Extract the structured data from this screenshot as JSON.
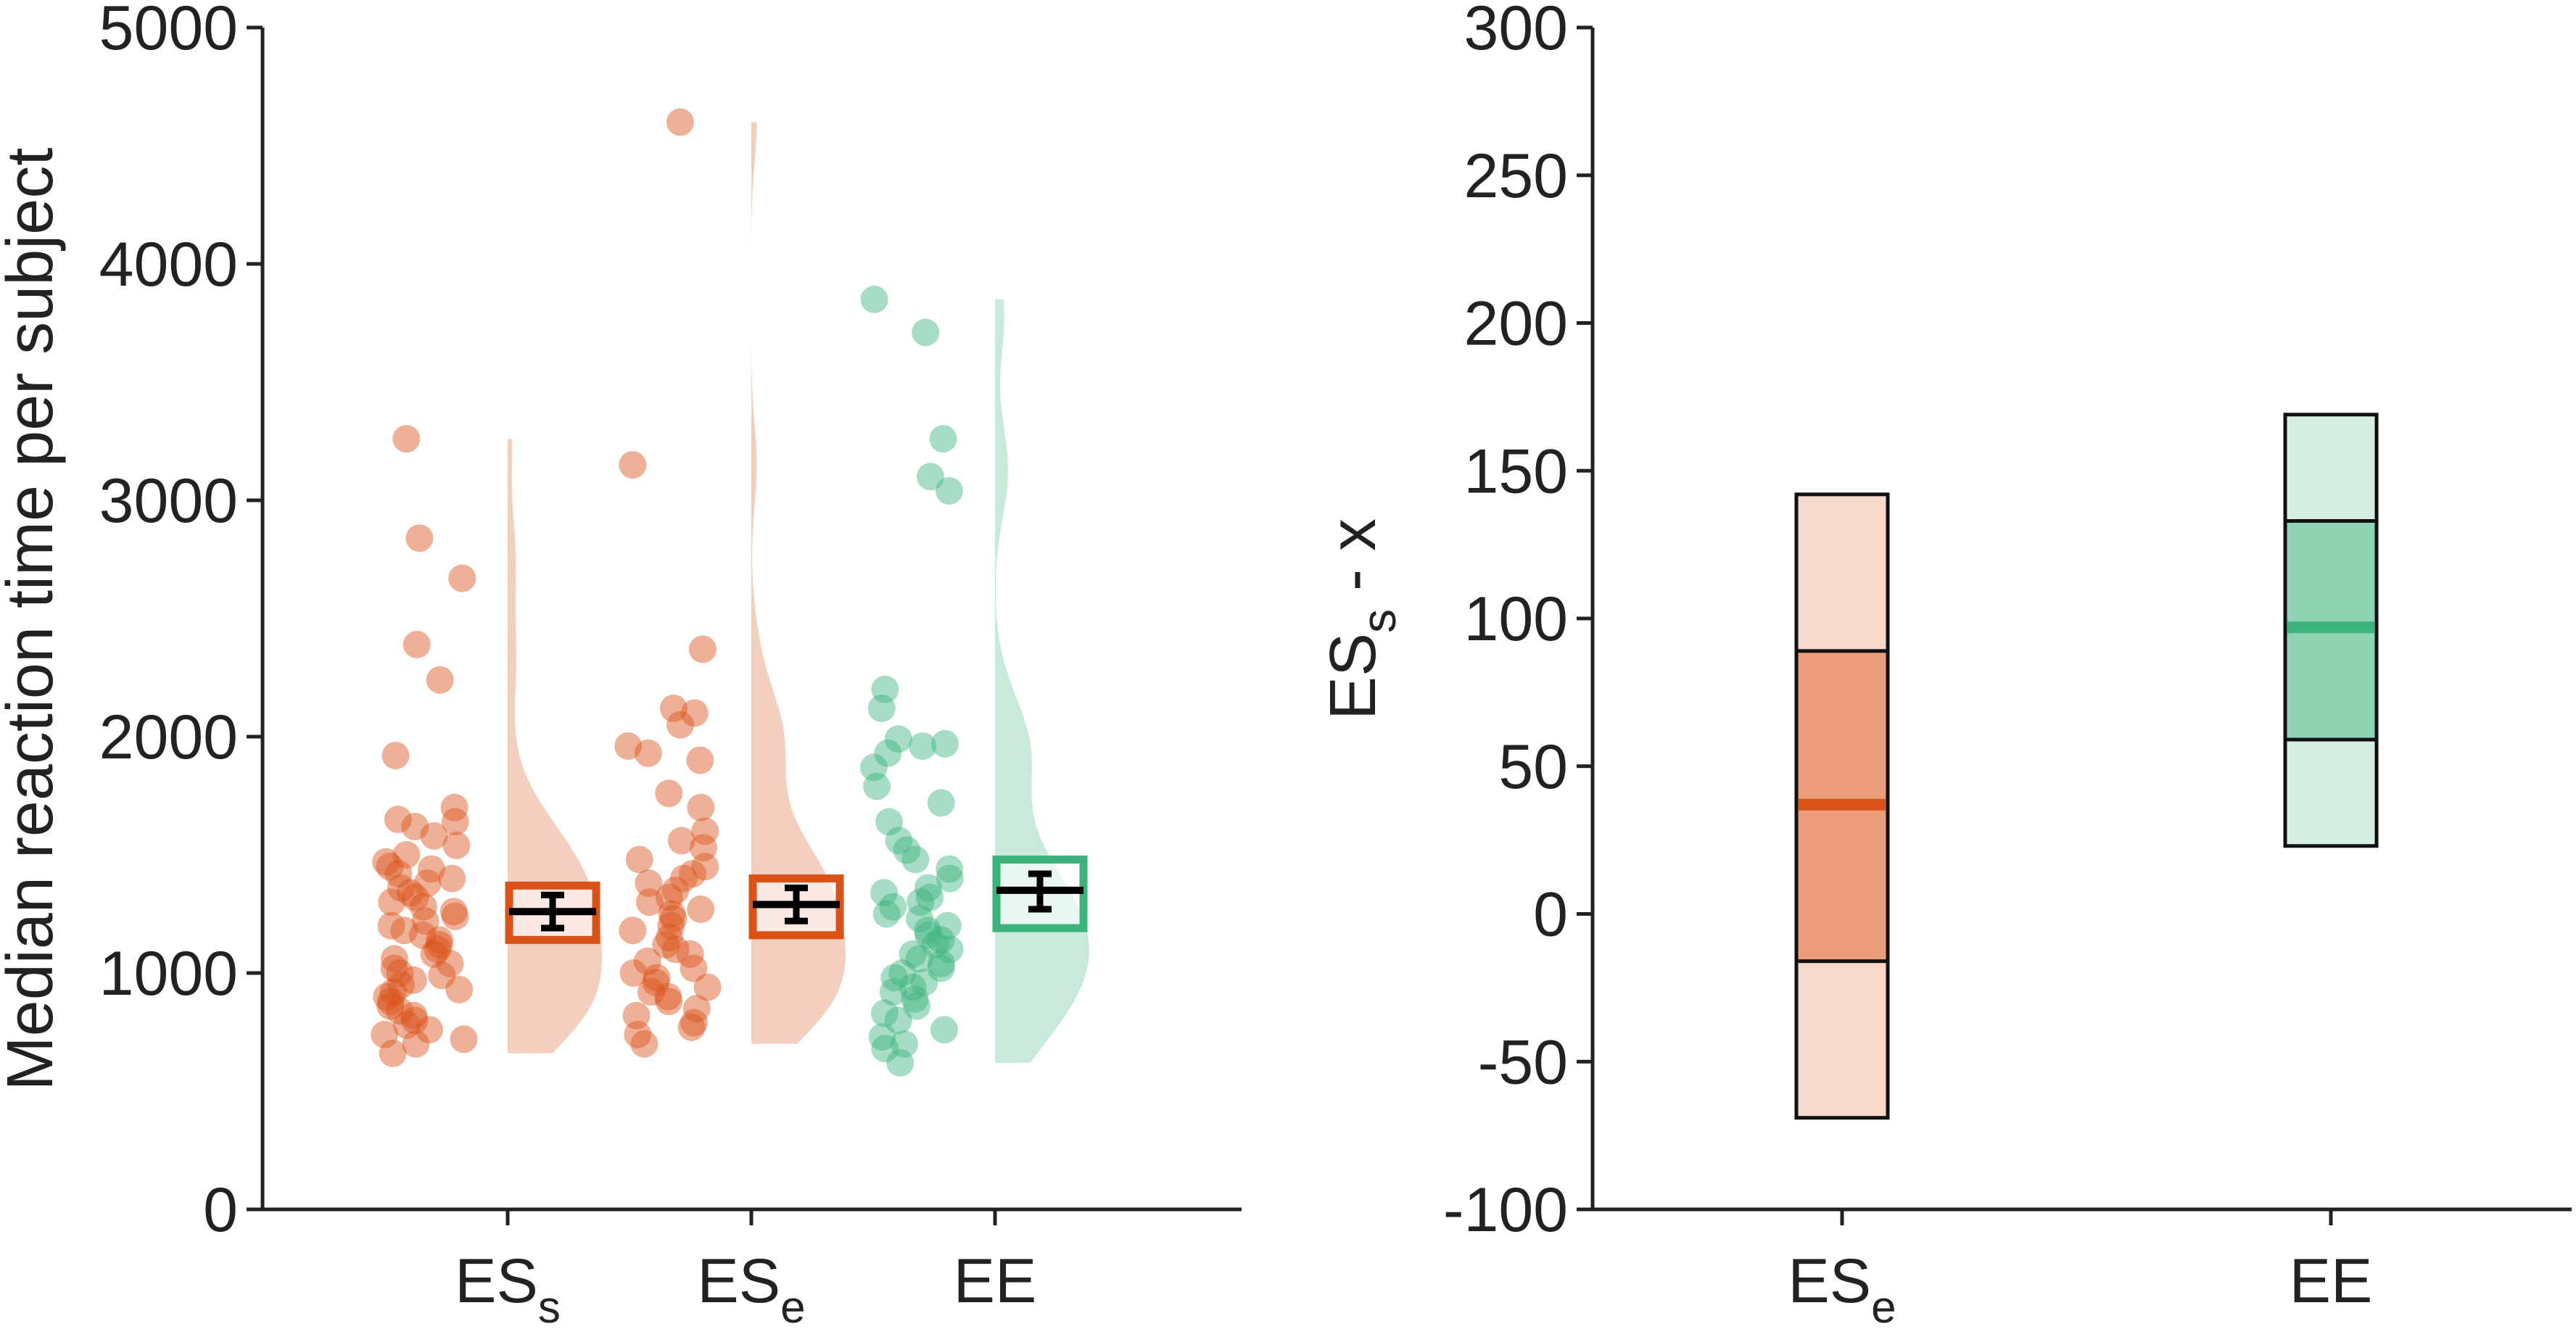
{
  "colors": {
    "ESs": "#D95319",
    "ESe": "#D95319",
    "EE": "#3CB37C",
    "axis": "#222222"
  },
  "chart_data": [
    {
      "type": "scatter",
      "subtype": "raincloud",
      "ylabel": "Median reaction time per subject",
      "ylim": [
        0,
        5000
      ],
      "yticks": [
        "0",
        "1000",
        "2000",
        "3000",
        "4000",
        "5000"
      ],
      "categories": [
        {
          "base": "ES",
          "sub": "s"
        },
        {
          "base": "ES",
          "sub": "e"
        },
        {
          "base": "EE",
          "sub": ""
        }
      ],
      "series": [
        {
          "key": "ESs",
          "color": "#D95319",
          "points": [
            3260,
            2840,
            2670,
            2390,
            2240,
            1920,
            1700,
            1650,
            1640,
            1620,
            1580,
            1540,
            1500,
            1470,
            1450,
            1440,
            1420,
            1400,
            1380,
            1360,
            1340,
            1320,
            1300,
            1280,
            1260,
            1240,
            1220,
            1200,
            1180,
            1160,
            1140,
            1120,
            1100,
            1080,
            1060,
            1040,
            1020,
            1000,
            990,
            970,
            950,
            930,
            920,
            900,
            880,
            860,
            840,
            820,
            800,
            780,
            760,
            740,
            720,
            700,
            660
          ],
          "box": {
            "q1": 1140,
            "q3": 1370
          },
          "mean": 1260,
          "ci": [
            1190,
            1330
          ]
        },
        {
          "key": "ESe",
          "color": "#D95319",
          "points": [
            4600,
            3150,
            2370,
            2120,
            2100,
            2050,
            1960,
            1930,
            1900,
            1760,
            1700,
            1600,
            1560,
            1530,
            1480,
            1450,
            1420,
            1400,
            1380,
            1350,
            1320,
            1300,
            1270,
            1250,
            1230,
            1200,
            1180,
            1150,
            1120,
            1100,
            1080,
            1050,
            1020,
            1000,
            980,
            960,
            940,
            920,
            900,
            880,
            850,
            820,
            790,
            770,
            740,
            700
          ],
          "box": {
            "q1": 1160,
            "q3": 1400
          },
          "mean": 1290,
          "ci": [
            1220,
            1360
          ]
        },
        {
          "key": "EE",
          "color": "#3CB37C",
          "points": [
            3850,
            3710,
            3260,
            3100,
            3040,
            2200,
            2120,
            1990,
            1970,
            1960,
            1930,
            1870,
            1790,
            1720,
            1640,
            1560,
            1520,
            1480,
            1440,
            1400,
            1360,
            1340,
            1320,
            1300,
            1280,
            1250,
            1230,
            1200,
            1180,
            1160,
            1140,
            1120,
            1100,
            1080,
            1060,
            1040,
            1020,
            1000,
            980,
            960,
            940,
            920,
            890,
            860,
            830,
            800,
            760,
            730,
            700,
            680,
            620
          ],
          "box": {
            "q1": 1190,
            "q3": 1480
          },
          "mean": 1350,
          "ci": [
            1270,
            1420
          ]
        }
      ]
    },
    {
      "type": "bar",
      "subtype": "interval",
      "ylabel": {
        "base": "ES",
        "sub": "s",
        "suffix": " - x"
      },
      "ylim": [
        -100,
        300
      ],
      "yticks": [
        "-100",
        "-50",
        "0",
        "50",
        "100",
        "150",
        "200",
        "250",
        "300"
      ],
      "categories": [
        {
          "base": "ES",
          "sub": "e"
        },
        {
          "base": "EE",
          "sub": ""
        }
      ],
      "series": [
        {
          "key": "ESe",
          "color": "#D95319",
          "outer": [
            -69,
            142
          ],
          "inner": [
            -16,
            89
          ],
          "median": 37
        },
        {
          "key": "EE",
          "color": "#3CB37C",
          "outer": [
            23,
            169
          ],
          "inner": [
            59,
            133
          ],
          "median": 97
        }
      ]
    }
  ]
}
